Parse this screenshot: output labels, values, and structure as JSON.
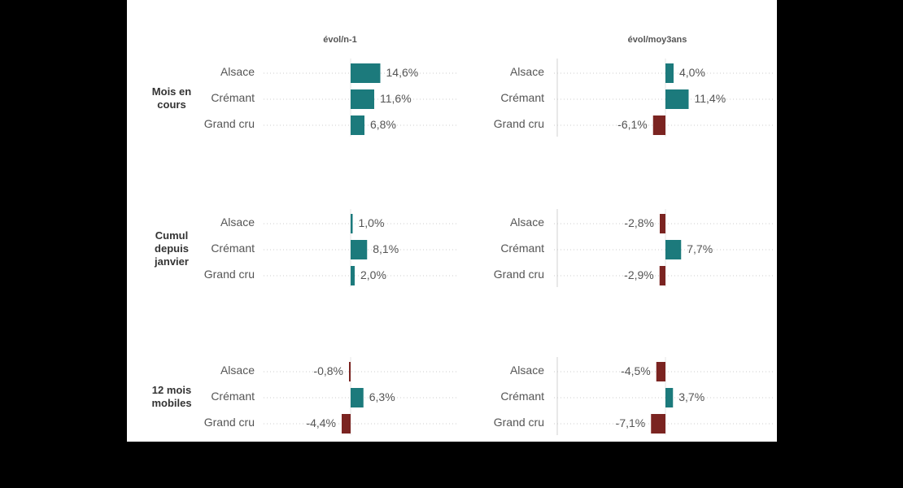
{
  "colors": {
    "positive": "#1c7a7c",
    "negative": "#7b2421",
    "text": "#555555",
    "header": "#555555",
    "group": "#333333",
    "grid": "#cccccc",
    "axis": "#e6e6e6"
  },
  "chart_data": {
    "type": "bar",
    "orientation": "horizontal",
    "columns": [
      {
        "key": "n1",
        "title": "évol/n-1"
      },
      {
        "key": "moy3",
        "title": "évol/moy3ans"
      }
    ],
    "groups": [
      {
        "label": [
          "Mois en",
          "cours"
        ],
        "rows": [
          {
            "category": "Alsace",
            "n1": 14.6,
            "n1_label": "14,6%",
            "moy3": 4.0,
            "moy3_label": "4,0%"
          },
          {
            "category": "Crémant",
            "n1": 11.6,
            "n1_label": "11,6%",
            "moy3": 11.4,
            "moy3_label": "11,4%"
          },
          {
            "category": "Grand cru",
            "n1": 6.8,
            "n1_label": "6,8%",
            "moy3": -6.1,
            "moy3_label": "-6,1%"
          }
        ]
      },
      {
        "label": [
          "Cumul",
          "depuis",
          "janvier"
        ],
        "rows": [
          {
            "category": "Alsace",
            "n1": 1.0,
            "n1_label": "1,0%",
            "moy3": -2.8,
            "moy3_label": "-2,8%"
          },
          {
            "category": "Crémant",
            "n1": 8.1,
            "n1_label": "8,1%",
            "moy3": 7.7,
            "moy3_label": "7,7%"
          },
          {
            "category": "Grand cru",
            "n1": 2.0,
            "n1_label": "2,0%",
            "moy3": -2.9,
            "moy3_label": "-2,9%"
          }
        ]
      },
      {
        "label": [
          "12 mois",
          "mobiles"
        ],
        "rows": [
          {
            "category": "Alsace",
            "n1": -0.8,
            "n1_label": "-0,8%",
            "moy3": -4.5,
            "moy3_label": "-4,5%"
          },
          {
            "category": "Crémant",
            "n1": 6.3,
            "n1_label": "6,3%",
            "moy3": 3.7,
            "moy3_label": "3,7%"
          },
          {
            "category": "Grand cru",
            "n1": -4.4,
            "n1_label": "-4,4%",
            "moy3": -7.1,
            "moy3_label": "-7,1%"
          }
        ]
      }
    ]
  }
}
